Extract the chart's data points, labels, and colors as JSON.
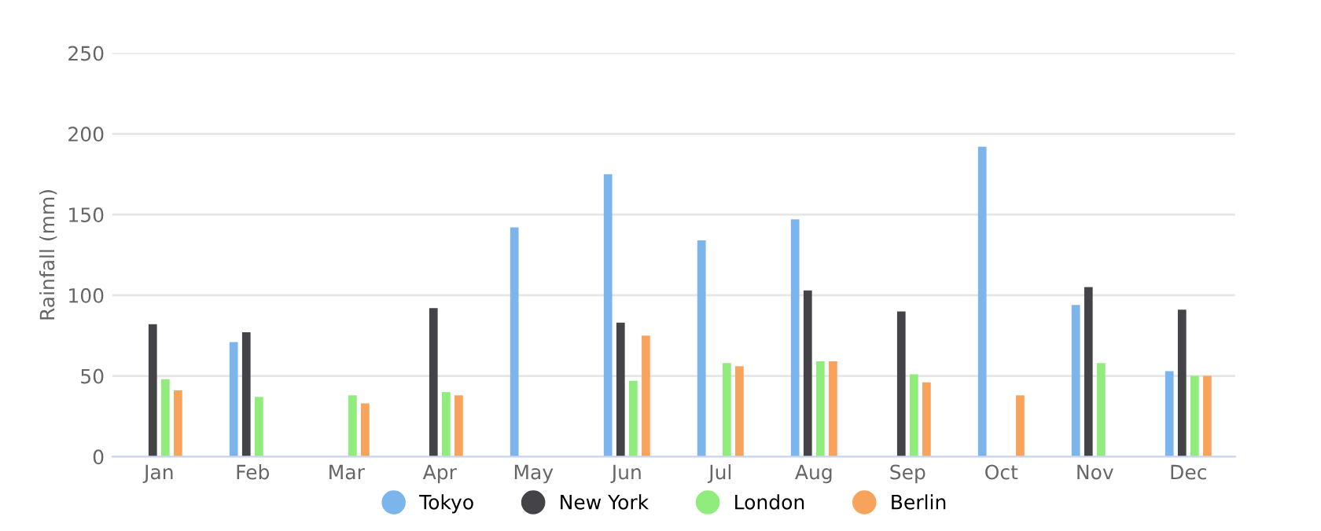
{
  "chart_data": {
    "type": "bar",
    "ylabel": "Rainfall (mm)",
    "categories": [
      "Jan",
      "Feb",
      "Mar",
      "Apr",
      "May",
      "Jun",
      "Jul",
      "Aug",
      "Sep",
      "Oct",
      "Nov",
      "Dec"
    ],
    "series": [
      {
        "name": "Tokyo",
        "color": "#7cb5ec",
        "values": [
          null,
          71,
          null,
          null,
          142,
          175,
          134,
          147,
          null,
          192,
          94,
          53
        ]
      },
      {
        "name": "New York",
        "color": "#434348",
        "values": [
          82,
          77,
          null,
          92,
          null,
          83,
          null,
          103,
          90,
          null,
          105,
          91
        ]
      },
      {
        "name": "London",
        "color": "#90ed7d",
        "values": [
          48,
          37,
          38,
          40,
          null,
          47,
          58,
          59,
          51,
          null,
          58,
          50
        ]
      },
      {
        "name": "Berlin",
        "color": "#f7a35c",
        "values": [
          41,
          null,
          33,
          38,
          null,
          75,
          56,
          59,
          46,
          38,
          null,
          50
        ]
      }
    ],
    "ylim": [
      0,
      250
    ],
    "yticks": [
      0,
      50,
      100,
      150,
      200,
      250
    ],
    "grid": "y",
    "legend": "bottom"
  }
}
